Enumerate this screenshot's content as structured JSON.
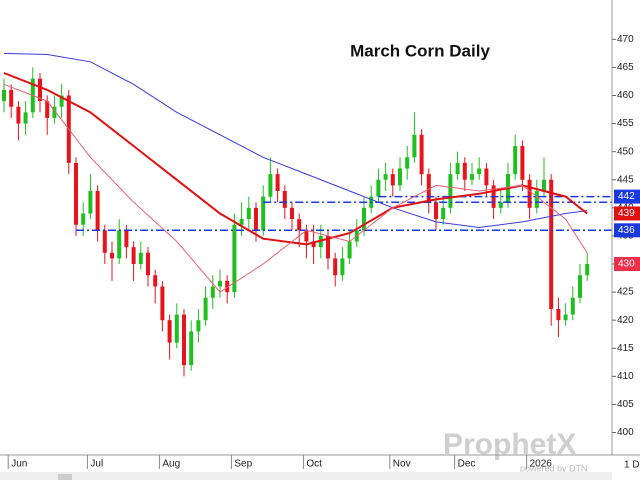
{
  "chart_data": {
    "type": "candlestick",
    "title": "March Corn Daily",
    "up_color": "#1fbf1f",
    "down_color": "#e8141c",
    "open": [
      459,
      461,
      458,
      455,
      457,
      463,
      459,
      456,
      458,
      460,
      448,
      437,
      439,
      443,
      436,
      432,
      431,
      436,
      433,
      430,
      432,
      428,
      426,
      420,
      416,
      421,
      412,
      418,
      420,
      424,
      426,
      427,
      425,
      437,
      438,
      440,
      436,
      442,
      446,
      443,
      440,
      438,
      436,
      434,
      433,
      435,
      431,
      428,
      431,
      434,
      436,
      440,
      442,
      445,
      446,
      444,
      447,
      449,
      453,
      446,
      441,
      438,
      440,
      446,
      448,
      445,
      446,
      447,
      444,
      440,
      441,
      446,
      451,
      445,
      440,
      443,
      445,
      422,
      420,
      421,
      424,
      428
    ],
    "high": [
      463,
      462,
      459,
      459,
      465,
      464,
      460,
      460,
      462,
      461,
      449,
      441,
      446,
      444,
      437,
      434,
      438,
      437,
      434,
      434,
      433,
      429,
      427,
      421,
      423,
      422,
      420,
      422,
      426,
      428,
      429,
      428,
      439,
      441,
      442,
      441,
      444,
      449,
      447,
      444,
      441,
      439,
      437,
      437,
      437,
      436,
      432,
      433,
      436,
      438,
      442,
      444,
      447,
      448,
      447,
      449,
      451,
      457,
      454,
      447,
      442,
      442,
      448,
      450,
      449,
      448,
      449,
      448,
      445,
      443,
      448,
      453,
      452,
      446,
      445,
      449,
      446,
      424,
      423,
      426,
      430,
      432
    ],
    "low": [
      457,
      456,
      452,
      453,
      456,
      457,
      453,
      455,
      456,
      446,
      435,
      435,
      438,
      434,
      430,
      427,
      430,
      431,
      427,
      429,
      426,
      423,
      418,
      413,
      415,
      410,
      411,
      416,
      419,
      422,
      424,
      423,
      424,
      435,
      436,
      434,
      435,
      441,
      441,
      438,
      436,
      433,
      431,
      430,
      431,
      429,
      426,
      427,
      430,
      433,
      435,
      439,
      441,
      443,
      442,
      443,
      445,
      448,
      444,
      439,
      436,
      437,
      439,
      445,
      443,
      444,
      445,
      442,
      438,
      439,
      440,
      445,
      443,
      438,
      439,
      442,
      419,
      417,
      419,
      420,
      423,
      427
    ],
    "close": [
      461,
      458,
      455,
      457,
      463,
      459,
      456,
      458,
      460,
      448,
      437,
      439,
      443,
      436,
      432,
      431,
      436,
      433,
      430,
      432,
      428,
      426,
      420,
      416,
      421,
      412,
      418,
      420,
      424,
      426,
      427,
      425,
      437,
      438,
      440,
      436,
      442,
      446,
      443,
      440,
      438,
      436,
      434,
      433,
      435,
      431,
      428,
      431,
      434,
      436,
      440,
      442,
      445,
      446,
      444,
      447,
      449,
      453,
      446,
      441,
      438,
      440,
      446,
      448,
      445,
      446,
      447,
      444,
      440,
      441,
      446,
      451,
      445,
      440,
      443,
      445,
      422,
      420,
      421,
      424,
      428,
      430
    ],
    "ma_x": [
      0,
      6,
      12,
      18,
      24,
      30,
      36,
      42,
      48,
      54,
      60,
      66,
      72,
      78,
      81
    ],
    "moving_averages": [
      {
        "color": "#3a3adf",
        "width": 1,
        "values": [
          467.5,
          467.3,
          466,
          462,
          457,
          453,
          449,
          446,
          443,
          440,
          437.5,
          436.5,
          437.5,
          439,
          439.5
        ]
      },
      {
        "color": "#e01010",
        "width": 2,
        "values": [
          464,
          461,
          457,
          451,
          445,
          439,
          434.5,
          433.5,
          435.5,
          440,
          441.5,
          442.5,
          444,
          442,
          439
        ]
      },
      {
        "color": "#e8607a",
        "width": 1,
        "values": [
          462,
          459,
          449,
          441,
          434,
          425,
          430,
          436,
          434,
          440,
          444,
          443,
          444,
          438,
          432
        ]
      }
    ],
    "levels": [
      {
        "value": 442,
        "start": 52
      },
      {
        "value": 441,
        "start": 36
      },
      {
        "value": 436,
        "start": 10
      }
    ],
    "price_tags": [
      {
        "label": "442",
        "value": 442,
        "color": "#1a3adf"
      },
      {
        "label": "439",
        "value": 439,
        "color": "#e01010"
      },
      {
        "label": "436",
        "value": 436,
        "color": "#1a3adf"
      },
      {
        "label": "430",
        "value": 430,
        "color": "#f0304a"
      }
    ],
    "ylim": [
      396,
      477
    ],
    "yticks": [
      400,
      405,
      410,
      415,
      420,
      425,
      430,
      435,
      440,
      445,
      450,
      455,
      460,
      465,
      470
    ],
    "date_labels": [
      {
        "label": "Jun",
        "index": 1
      },
      {
        "label": "Jul",
        "index": 12
      },
      {
        "label": "Aug",
        "index": 22
      },
      {
        "label": "Sep",
        "index": 32
      },
      {
        "label": "Oct",
        "index": 42
      },
      {
        "label": "Nov",
        "index": 54
      },
      {
        "label": "Dec",
        "index": 63
      },
      {
        "label": "2026",
        "index": 73
      }
    ],
    "timeframe": "1 D",
    "watermark": "ProphetX",
    "watermark_sub": "powered by DTN"
  }
}
